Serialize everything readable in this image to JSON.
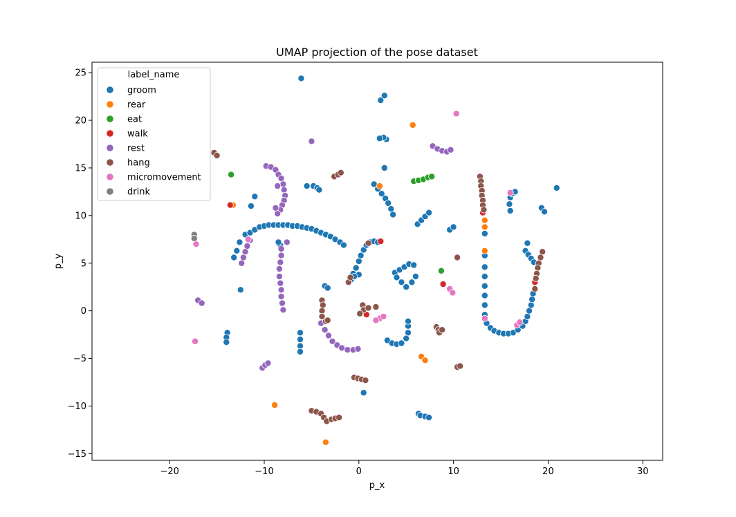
{
  "chart_data": {
    "type": "scatter",
    "title": "UMAP projection of the pose dataset",
    "xlabel": "p_x",
    "ylabel": "p_y",
    "xlim": [
      -28.2,
      32.1
    ],
    "ylim": [
      -15.7,
      26.1
    ],
    "xticks": [
      -20,
      -10,
      0,
      10,
      20,
      30
    ],
    "yticks": [
      -15,
      -10,
      -5,
      0,
      5,
      10,
      15,
      20,
      25
    ],
    "grid": false,
    "legend": {
      "title": "label_name",
      "placement": "top-left"
    },
    "series": [
      {
        "name": "groom",
        "color": "#1f77b4",
        "points": [
          [
            -6.1,
            24.4
          ],
          [
            2.7,
            22.6
          ],
          [
            2.3,
            22.1
          ],
          [
            2.9,
            18.0
          ],
          [
            2.6,
            18.2
          ],
          [
            2.2,
            18.1
          ],
          [
            2.7,
            15.0
          ],
          [
            20.9,
            12.9
          ],
          [
            -5.5,
            13.1
          ],
          [
            -4.8,
            13.1
          ],
          [
            -4.4,
            12.9
          ],
          [
            -4.2,
            12.7
          ],
          [
            1.6,
            13.3
          ],
          [
            2.0,
            12.8
          ],
          [
            2.4,
            12.3
          ],
          [
            2.8,
            11.8
          ],
          [
            3.1,
            11.3
          ],
          [
            3.4,
            10.7
          ],
          [
            3.6,
            10.1
          ],
          [
            -11.0,
            12.0
          ],
          [
            -11.4,
            11.0
          ],
          [
            16.0,
            11.9
          ],
          [
            16.2,
            12.3
          ],
          [
            16.5,
            12.5
          ],
          [
            15.9,
            11.2
          ],
          [
            16.0,
            10.5
          ],
          [
            19.3,
            10.8
          ],
          [
            19.6,
            10.4
          ],
          [
            6.2,
            9.1
          ],
          [
            6.6,
            9.5
          ],
          [
            7.0,
            9.9
          ],
          [
            7.4,
            10.3
          ],
          [
            9.6,
            8.5
          ],
          [
            10.0,
            8.8
          ],
          [
            13.3,
            8.1
          ],
          [
            -13.2,
            5.6
          ],
          [
            -12.9,
            6.3
          ],
          [
            -12.6,
            7.2
          ],
          [
            -12.0,
            8.0
          ],
          [
            -11.5,
            8.2
          ],
          [
            -11.0,
            8.5
          ],
          [
            -10.5,
            8.8
          ],
          [
            -10.0,
            8.9
          ],
          [
            -9.5,
            9.0
          ],
          [
            -9.0,
            9.0
          ],
          [
            -8.5,
            9.0
          ],
          [
            -8.0,
            9.0
          ],
          [
            -7.5,
            9.0
          ],
          [
            -7.0,
            8.9
          ],
          [
            -6.5,
            8.9
          ],
          [
            -6.0,
            8.8
          ],
          [
            -5.5,
            8.7
          ],
          [
            -5.0,
            8.6
          ],
          [
            -4.5,
            8.4
          ],
          [
            -4.0,
            8.2
          ],
          [
            -3.5,
            8.0
          ],
          [
            -3.0,
            7.8
          ],
          [
            -2.5,
            7.5
          ],
          [
            -2.0,
            7.2
          ],
          [
            -1.6,
            6.9
          ],
          [
            -8.3,
            6.9
          ],
          [
            -8.5,
            7.2
          ],
          [
            -0.8,
            3.3
          ],
          [
            -0.6,
            3.9
          ],
          [
            -0.3,
            4.5
          ],
          [
            0.0,
            5.2
          ],
          [
            0.2,
            5.8
          ],
          [
            0.5,
            6.4
          ],
          [
            0.8,
            6.9
          ],
          [
            1.2,
            7.2
          ],
          [
            1.6,
            7.3
          ],
          [
            2.0,
            7.2
          ],
          [
            0.0,
            3.8
          ],
          [
            -0.5,
            3.6
          ],
          [
            17.8,
            7.1
          ],
          [
            17.6,
            6.3
          ],
          [
            17.9,
            5.9
          ],
          [
            18.2,
            5.5
          ],
          [
            18.5,
            5.1
          ],
          [
            13.3,
            5.8
          ],
          [
            13.3,
            4.6
          ],
          [
            13.3,
            3.6
          ],
          [
            13.3,
            2.6
          ],
          [
            13.3,
            1.6
          ],
          [
            13.3,
            0.6
          ],
          [
            13.3,
            -0.4
          ],
          [
            13.5,
            -1.3
          ],
          [
            13.9,
            -1.8
          ],
          [
            14.3,
            -2.1
          ],
          [
            14.8,
            -2.3
          ],
          [
            15.3,
            -2.4
          ],
          [
            15.8,
            -2.4
          ],
          [
            16.3,
            -2.3
          ],
          [
            16.8,
            -2.0
          ],
          [
            17.3,
            -1.6
          ],
          [
            17.6,
            -1.1
          ],
          [
            17.8,
            -0.6
          ],
          [
            18.0,
            0.0
          ],
          [
            18.2,
            0.6
          ],
          [
            18.3,
            1.2
          ],
          [
            18.4,
            1.8
          ],
          [
            3.8,
            4.0
          ],
          [
            4.3,
            4.3
          ],
          [
            4.8,
            4.6
          ],
          [
            5.3,
            4.9
          ],
          [
            5.8,
            4.8
          ],
          [
            4.0,
            3.5
          ],
          [
            4.5,
            3.0
          ],
          [
            5.0,
            2.5
          ],
          [
            5.6,
            3.0
          ],
          [
            6.0,
            3.6
          ],
          [
            -3.6,
            2.6
          ],
          [
            -3.3,
            2.4
          ],
          [
            -12.5,
            2.2
          ],
          [
            -13.9,
            -2.3
          ],
          [
            -14.0,
            -2.8
          ],
          [
            -14.0,
            -3.3
          ],
          [
            -6.2,
            -2.3
          ],
          [
            -6.2,
            -3.0
          ],
          [
            -6.2,
            -3.7
          ],
          [
            -6.2,
            -4.3
          ],
          [
            3.0,
            -3.1
          ],
          [
            3.5,
            -3.4
          ],
          [
            4.0,
            -3.5
          ],
          [
            4.5,
            -3.4
          ],
          [
            5.0,
            -2.9
          ],
          [
            5.2,
            -2.3
          ],
          [
            5.2,
            -1.6
          ],
          [
            5.2,
            -1.1
          ],
          [
            0.5,
            -8.6
          ],
          [
            6.3,
            -10.8
          ],
          [
            6.5,
            -11.0
          ],
          [
            7.0,
            -11.1
          ],
          [
            7.4,
            -11.2
          ]
        ]
      },
      {
        "name": "rear",
        "color": "#ff7f0e",
        "points": [
          [
            5.7,
            19.5
          ],
          [
            -13.3,
            11.1
          ],
          [
            13.3,
            9.5
          ],
          [
            13.3,
            8.8
          ],
          [
            13.3,
            6.3
          ],
          [
            2.2,
            13.1
          ],
          [
            6.6,
            -4.8
          ],
          [
            7.0,
            -5.2
          ],
          [
            -8.9,
            -9.9
          ],
          [
            -3.5,
            -13.8
          ]
        ]
      },
      {
        "name": "eat",
        "color": "#2ca02c",
        "points": [
          [
            -13.5,
            14.3
          ],
          [
            5.8,
            13.6
          ],
          [
            6.3,
            13.7
          ],
          [
            6.8,
            13.8
          ],
          [
            7.3,
            14.0
          ],
          [
            7.7,
            14.1
          ],
          [
            8.7,
            4.2
          ]
        ]
      },
      {
        "name": "walk",
        "color": "#d62728",
        "points": [
          [
            -13.6,
            11.1
          ],
          [
            13.1,
            10.3
          ],
          [
            2.3,
            7.3
          ],
          [
            8.9,
            2.8
          ],
          [
            18.6,
            3.0
          ],
          [
            0.8,
            -0.4
          ]
        ]
      },
      {
        "name": "rest",
        "color": "#9467bd",
        "points": [
          [
            -5.0,
            17.8
          ],
          [
            7.8,
            17.3
          ],
          [
            8.3,
            17.0
          ],
          [
            8.8,
            16.8
          ],
          [
            9.3,
            16.7
          ],
          [
            9.7,
            16.9
          ],
          [
            -9.8,
            15.2
          ],
          [
            -9.3,
            15.1
          ],
          [
            -8.8,
            14.8
          ],
          [
            -8.5,
            14.3
          ],
          [
            -8.2,
            13.9
          ],
          [
            -8.0,
            13.3
          ],
          [
            -7.9,
            12.7
          ],
          [
            -7.8,
            12.1
          ],
          [
            -7.9,
            11.6
          ],
          [
            -8.1,
            11.1
          ],
          [
            -8.3,
            10.6
          ],
          [
            -8.6,
            10.2
          ],
          [
            -8.8,
            10.8
          ],
          [
            -8.6,
            13.1
          ],
          [
            -12.4,
            5.0
          ],
          [
            -12.2,
            5.6
          ],
          [
            -12.0,
            6.2
          ],
          [
            -11.8,
            6.8
          ],
          [
            -11.5,
            7.4
          ],
          [
            -8.2,
            6.5
          ],
          [
            -8.2,
            5.8
          ],
          [
            -8.3,
            5.1
          ],
          [
            -8.4,
            4.4
          ],
          [
            -8.4,
            3.6
          ],
          [
            -8.3,
            2.9
          ],
          [
            -8.2,
            2.2
          ],
          [
            -8.2,
            1.5
          ],
          [
            -8.1,
            0.8
          ],
          [
            -8.0,
            0.1
          ],
          [
            -7.6,
            7.2
          ],
          [
            -17.0,
            1.1
          ],
          [
            -16.6,
            0.8
          ],
          [
            -4.0,
            -1.3
          ],
          [
            -3.6,
            -2.0
          ],
          [
            -3.2,
            -2.6
          ],
          [
            -2.8,
            -3.2
          ],
          [
            -2.3,
            -3.6
          ],
          [
            -1.8,
            -3.9
          ],
          [
            -1.2,
            -4.1
          ],
          [
            -0.6,
            -4.1
          ],
          [
            -0.1,
            -4.0
          ],
          [
            -10.2,
            -6.0
          ],
          [
            -9.9,
            -5.7
          ],
          [
            -9.6,
            -5.5
          ]
        ]
      },
      {
        "name": "hang",
        "color": "#8c564b",
        "points": [
          [
            -15.3,
            16.6
          ],
          [
            -15.0,
            16.3
          ],
          [
            -2.6,
            14.1
          ],
          [
            -2.2,
            14.3
          ],
          [
            -1.9,
            14.5
          ],
          [
            12.8,
            14.1
          ],
          [
            12.9,
            13.6
          ],
          [
            12.9,
            13.1
          ],
          [
            13.0,
            12.6
          ],
          [
            13.0,
            12.1
          ],
          [
            13.1,
            11.6
          ],
          [
            13.1,
            11.1
          ],
          [
            13.2,
            10.6
          ],
          [
            1.0,
            7.1
          ],
          [
            10.4,
            5.6
          ],
          [
            19.4,
            6.2
          ],
          [
            19.2,
            5.6
          ],
          [
            19.0,
            5.0
          ],
          [
            18.9,
            4.5
          ],
          [
            18.8,
            3.9
          ],
          [
            18.7,
            3.4
          ],
          [
            18.6,
            2.3
          ],
          [
            -1.1,
            3.0
          ],
          [
            -0.9,
            3.5
          ],
          [
            -3.9,
            1.1
          ],
          [
            -3.8,
            0.6
          ],
          [
            -3.9,
            0.0
          ],
          [
            -3.9,
            -0.6
          ],
          [
            -3.5,
            -1.1
          ],
          [
            -3.3,
            -1.0
          ],
          [
            0.4,
            0.6
          ],
          [
            0.5,
            0.1
          ],
          [
            0.1,
            -0.3
          ],
          [
            1.0,
            0.3
          ],
          [
            1.8,
            0.4
          ],
          [
            8.2,
            -1.7
          ],
          [
            8.4,
            -2.0
          ],
          [
            8.5,
            -2.3
          ],
          [
            8.8,
            -2.0
          ],
          [
            10.4,
            -5.9
          ],
          [
            10.7,
            -5.8
          ],
          [
            -0.5,
            -7.0
          ],
          [
            -0.1,
            -7.1
          ],
          [
            0.3,
            -7.2
          ],
          [
            0.7,
            -7.3
          ],
          [
            -5.0,
            -10.5
          ],
          [
            -4.5,
            -10.6
          ],
          [
            -4.0,
            -10.8
          ],
          [
            -3.7,
            -11.2
          ],
          [
            -3.4,
            -11.6
          ],
          [
            -2.9,
            -11.4
          ],
          [
            -2.5,
            -11.3
          ],
          [
            -2.1,
            -11.2
          ]
        ]
      },
      {
        "name": "micromovement",
        "color": "#e377c2",
        "points": [
          [
            10.3,
            20.7
          ],
          [
            16.0,
            12.4
          ],
          [
            -11.7,
            7.5
          ],
          [
            -17.2,
            7.0
          ],
          [
            13.3,
            -0.8
          ],
          [
            9.6,
            2.3
          ],
          [
            9.9,
            1.9
          ],
          [
            2.2,
            -0.8
          ],
          [
            2.6,
            -0.6
          ],
          [
            1.8,
            -1.0
          ],
          [
            -17.3,
            -3.2
          ],
          [
            16.7,
            -1.5
          ],
          [
            17.0,
            -1.2
          ]
        ]
      },
      {
        "name": "drink",
        "color": "#7f7f7f",
        "points": [
          [
            -17.4,
            8.0
          ],
          [
            -17.4,
            7.6
          ]
        ]
      }
    ]
  }
}
